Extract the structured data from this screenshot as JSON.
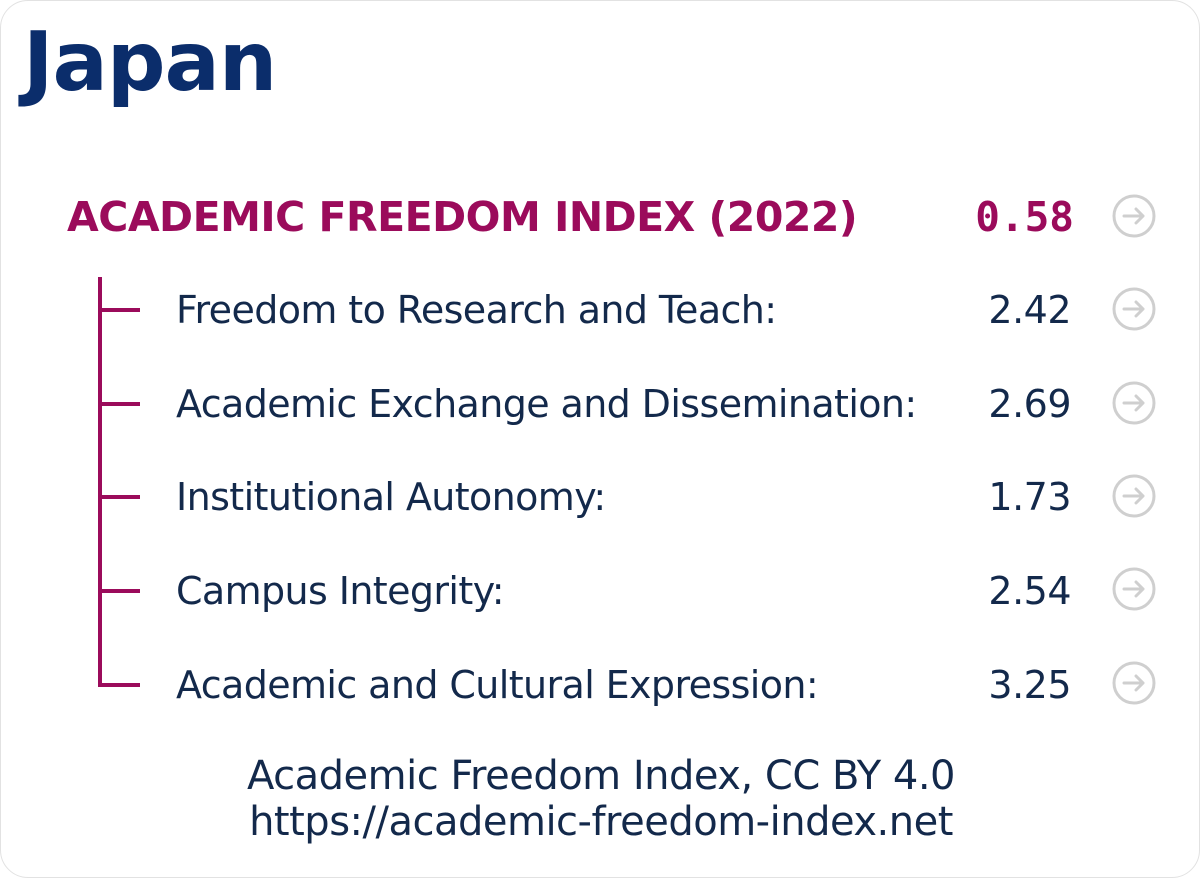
{
  "country": "Japan",
  "index": {
    "label": "ACADEMIC FREEDOM INDEX (2022)",
    "value": "0.58"
  },
  "indicators": [
    {
      "label": "Freedom to Research and Teach:",
      "value": "2.42"
    },
    {
      "label": "Academic Exchange and Dissemination:",
      "value": "2.69"
    },
    {
      "label": "Institutional Autonomy:",
      "value": "1.73"
    },
    {
      "label": "Campus Integrity:",
      "value": "2.54"
    },
    {
      "label": "Academic and Cultural Expression:",
      "value": "3.25"
    }
  ],
  "footer": {
    "line1": "Academic Freedom Index, CC BY 4.0",
    "line2": "https://academic-freedom-index.net"
  },
  "colors": {
    "country_title": "#0b2d6b",
    "accent": "#9b0b5b",
    "text": "#13294b",
    "arrow_icon": "#cfcfcf"
  },
  "icons": {
    "row_arrow": "arrow-right-circle-icon"
  }
}
